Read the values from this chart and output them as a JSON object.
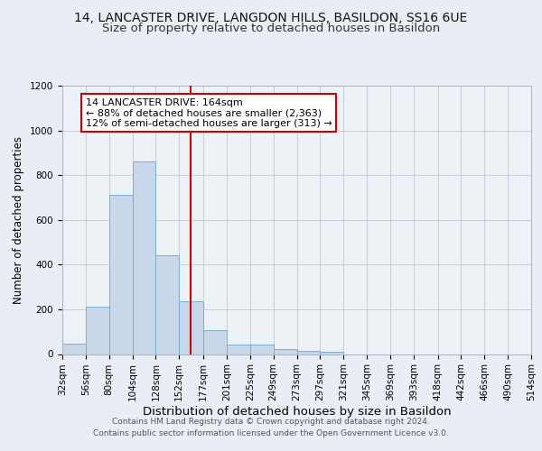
{
  "title": "14, LANCASTER DRIVE, LANGDON HILLS, BASILDON, SS16 6UE",
  "subtitle": "Size of property relative to detached houses in Basildon",
  "xlabel": "Distribution of detached houses by size in Basildon",
  "ylabel": "Number of detached properties",
  "bin_labels": [
    "32sqm",
    "56sqm",
    "80sqm",
    "104sqm",
    "128sqm",
    "152sqm",
    "177sqm",
    "201sqm",
    "225sqm",
    "249sqm",
    "273sqm",
    "297sqm",
    "321sqm",
    "345sqm",
    "369sqm",
    "393sqm",
    "418sqm",
    "442sqm",
    "466sqm",
    "490sqm",
    "514sqm"
  ],
  "bin_edges": [
    32,
    56,
    80,
    104,
    128,
    152,
    177,
    201,
    225,
    249,
    273,
    297,
    321,
    345,
    369,
    393,
    418,
    442,
    466,
    490,
    514
  ],
  "bar_heights": [
    46,
    210,
    712,
    862,
    440,
    234,
    105,
    43,
    41,
    21,
    13,
    9,
    0,
    0,
    0,
    0,
    0,
    0,
    0,
    0
  ],
  "bar_color": "#c8d8ea",
  "bar_edge_color": "#6fa8d0",
  "property_value": 164,
  "vline_color": "#cc0000",
  "annotation_line1": "14 LANCASTER DRIVE: 164sqm",
  "annotation_line2": "← 88% of detached houses are smaller (2,363)",
  "annotation_line3": "12% of semi-detached houses are larger (313) →",
  "annotation_box_color": "#ffffff",
  "annotation_box_edge": "#cc0000",
  "ylim": [
    0,
    1200
  ],
  "yticks": [
    0,
    200,
    400,
    600,
    800,
    1000,
    1200
  ],
  "background_color": "#e8eef4",
  "plot_background": "#edf2f7",
  "footer_line1": "Contains HM Land Registry data © Crown copyright and database right 2024.",
  "footer_line2": "Contains public sector information licensed under the Open Government Licence v3.0.",
  "title_fontsize": 10,
  "subtitle_fontsize": 9.5,
  "xlabel_fontsize": 9.5,
  "ylabel_fontsize": 8.5,
  "tick_fontsize": 7.5,
  "annot_fontsize": 8,
  "footer_fontsize": 6.5
}
